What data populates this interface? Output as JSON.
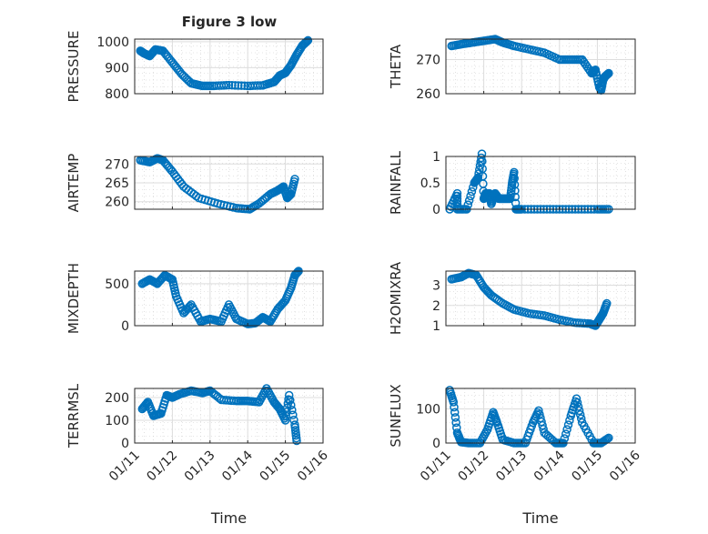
{
  "figure_title": "Figure 3 low",
  "chart_data": [
    {
      "type": "scatter",
      "title": "Figure 3 low",
      "ylabel": "PRESSURE",
      "xlabel": "",
      "ylim": [
        800,
        1010
      ],
      "yticks": [
        800,
        900,
        1000
      ],
      "x": [
        0.15,
        0.25,
        0.4,
        0.55,
        0.75,
        1.0,
        1.25,
        1.5,
        1.8,
        2.1,
        2.5,
        3.0,
        3.4,
        3.7,
        3.85,
        4.0,
        4.15,
        4.3,
        4.45,
        4.6
      ],
      "y": [
        965,
        955,
        945,
        970,
        965,
        920,
        875,
        840,
        830,
        830,
        833,
        830,
        832,
        845,
        870,
        880,
        910,
        950,
        985,
        1005
      ]
    },
    {
      "type": "scatter",
      "ylabel": "THETA",
      "xlabel": "",
      "ylim": [
        260,
        276
      ],
      "yticks": [
        260,
        270
      ],
      "x": [
        0.15,
        0.4,
        0.7,
        1.0,
        1.3,
        1.5,
        1.8,
        2.2,
        2.6,
        3.0,
        3.3,
        3.6,
        3.85,
        3.95,
        4.05,
        4.1,
        4.15,
        4.2,
        4.3
      ],
      "y": [
        274,
        274.5,
        275,
        275.5,
        276,
        275,
        274,
        273,
        272,
        270,
        270,
        270,
        266,
        267,
        262,
        261,
        264,
        265,
        266
      ]
    },
    {
      "type": "scatter",
      "ylabel": "AIR_TEMP",
      "xlabel": "",
      "ylim": [
        258,
        272
      ],
      "yticks": [
        260,
        265,
        270
      ],
      "x": [
        0.15,
        0.4,
        0.6,
        0.75,
        1.0,
        1.3,
        1.7,
        2.2,
        2.7,
        3.05,
        3.3,
        3.6,
        3.8,
        3.95,
        4.05,
        4.15,
        4.25
      ],
      "y": [
        271,
        270.5,
        271.5,
        271,
        268,
        264,
        261,
        259.5,
        258.3,
        258,
        259.5,
        262,
        263,
        264,
        261,
        262,
        266
      ]
    },
    {
      "type": "scatter",
      "ylabel": "RAINFALL",
      "xlabel": "",
      "ylim": [
        0,
        1
      ],
      "yticks": [
        0,
        0.5,
        1
      ],
      "x": [
        0.1,
        0.3,
        0.3,
        0.55,
        0.75,
        0.85,
        0.95,
        1.0,
        1.05,
        1.15,
        1.2,
        1.3,
        1.4,
        1.5,
        1.6,
        1.7,
        1.75,
        1.8,
        1.85,
        2.0,
        2.5,
        3.0,
        3.5,
        4.0,
        4.3
      ],
      "y": [
        0,
        0.3,
        0,
        0,
        0.5,
        0.6,
        1.05,
        0.2,
        0.3,
        0.3,
        0.1,
        0.3,
        0.2,
        0.2,
        0.2,
        0.2,
        0.5,
        0.7,
        0,
        0,
        0,
        0,
        0,
        0,
        0
      ]
    },
    {
      "type": "scatter",
      "ylabel": "MIXDEPTH",
      "xlabel": "",
      "ylim": [
        0,
        650
      ],
      "yticks": [
        0,
        500
      ],
      "x": [
        0.2,
        0.4,
        0.6,
        0.8,
        1.0,
        1.1,
        1.3,
        1.5,
        1.75,
        2.0,
        2.3,
        2.5,
        2.7,
        3.0,
        3.2,
        3.4,
        3.6,
        3.8,
        4.0,
        4.15,
        4.25,
        4.35
      ],
      "y": [
        500,
        550,
        500,
        600,
        550,
        350,
        150,
        250,
        50,
        80,
        50,
        250,
        80,
        20,
        30,
        100,
        50,
        200,
        300,
        450,
        600,
        650
      ]
    },
    {
      "type": "scatter",
      "ylabel": "H2OMIXRA",
      "xlabel": "",
      "ylim": [
        1,
        3.7
      ],
      "yticks": [
        1,
        2,
        3
      ],
      "x": [
        0.15,
        0.4,
        0.6,
        0.8,
        1.0,
        1.2,
        1.5,
        1.8,
        2.2,
        2.6,
        3.0,
        3.4,
        3.8,
        3.95,
        4.05,
        4.15,
        4.25
      ],
      "y": [
        3.3,
        3.4,
        3.6,
        3.5,
        2.9,
        2.5,
        2.1,
        1.8,
        1.6,
        1.5,
        1.3,
        1.15,
        1.1,
        1.0,
        1.3,
        1.6,
        2.1
      ]
    },
    {
      "type": "scatter",
      "ylabel": "TERR_MSL",
      "xlabel": "Time",
      "ylim": [
        0,
        240
      ],
      "yticks": [
        0,
        100,
        200
      ],
      "xticks": [
        "01/11",
        "01/12",
        "01/13",
        "01/14",
        "01/15",
        "01/16"
      ],
      "x": [
        0.2,
        0.35,
        0.5,
        0.7,
        0.85,
        1.0,
        1.2,
        1.5,
        1.8,
        2.0,
        2.3,
        2.7,
        3.0,
        3.3,
        3.5,
        3.7,
        3.85,
        4.0,
        4.1,
        4.25,
        4.3
      ],
      "y": [
        150,
        180,
        120,
        130,
        210,
        200,
        215,
        230,
        220,
        230,
        190,
        185,
        185,
        180,
        240,
        180,
        150,
        100,
        210,
        80,
        10
      ]
    },
    {
      "type": "scatter",
      "ylabel": "SUN_FLUX",
      "xlabel": "Time",
      "ylim": [
        0,
        160
      ],
      "yticks": [
        0,
        100
      ],
      "xticks": [
        "01/11",
        "01/12",
        "01/13",
        "01/14",
        "01/15",
        "01/16"
      ],
      "x": [
        0.1,
        0.2,
        0.3,
        0.4,
        0.6,
        0.9,
        1.1,
        1.25,
        1.35,
        1.5,
        1.8,
        2.1,
        2.3,
        2.45,
        2.6,
        2.9,
        3.1,
        3.3,
        3.45,
        3.6,
        3.9,
        4.1,
        4.3
      ],
      "y": [
        155,
        120,
        30,
        3,
        0,
        0,
        40,
        90,
        60,
        10,
        0,
        0,
        60,
        95,
        30,
        0,
        0,
        80,
        130,
        60,
        0,
        0,
        15
      ]
    }
  ]
}
